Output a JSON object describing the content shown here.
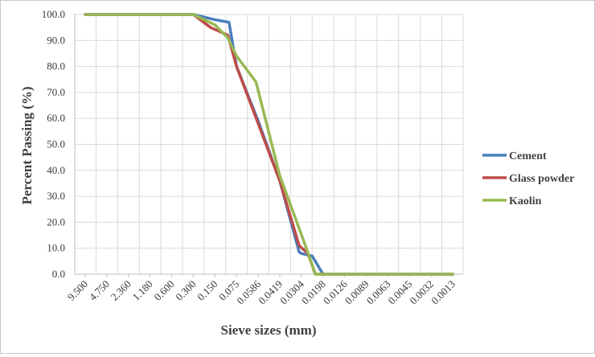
{
  "chart_data": {
    "type": "line",
    "title": "",
    "xlabel": "Sieve sizes (mm)",
    "ylabel": "Percent Passing (%)",
    "ylim": [
      0,
      100
    ],
    "y_ticks": [
      "0.0",
      "10.0",
      "20.0",
      "30.0",
      "40.0",
      "50.0",
      "60.0",
      "70.0",
      "80.0",
      "90.0",
      "100.0"
    ],
    "categories": [
      "9.500",
      "4.750",
      "2.360",
      "1.180",
      "0.600",
      "0.300",
      "0.150",
      "0.075",
      "0.0586",
      "0.0419",
      "0.0304",
      "0.0198",
      "0.0126",
      "0.0089",
      "0.0063",
      "0.0045",
      "0.0032",
      "0.0013"
    ],
    "x": [
      0,
      1,
      2,
      3,
      4,
      5,
      5.8,
      6.6,
      7.2,
      8,
      8.4,
      9,
      9.9,
      10,
      11,
      12,
      13,
      14,
      15,
      16,
      17
    ],
    "grid": true,
    "legend_position": "right",
    "series": [
      {
        "name": "Cement",
        "color": "#4a7ebb",
        "points": [
          [
            0,
            100
          ],
          [
            1,
            100
          ],
          [
            2,
            100
          ],
          [
            3,
            100
          ],
          [
            4,
            100
          ],
          [
            5,
            100
          ],
          [
            6,
            98
          ],
          [
            6.65,
            97
          ],
          [
            7,
            80
          ],
          [
            8,
            59
          ],
          [
            9,
            36
          ],
          [
            9.9,
            8.5
          ],
          [
            10,
            8
          ],
          [
            10.5,
            7
          ],
          [
            11,
            0
          ],
          [
            12,
            0
          ],
          [
            13,
            0
          ],
          [
            14,
            0
          ],
          [
            15,
            0
          ],
          [
            16,
            0
          ],
          [
            17,
            0
          ]
        ]
      },
      {
        "name": "Glass powder",
        "color": "#be4b48",
        "points": [
          [
            0,
            100
          ],
          [
            1,
            100
          ],
          [
            2,
            100
          ],
          [
            3,
            100
          ],
          [
            4,
            100
          ],
          [
            5,
            100
          ],
          [
            5.8,
            95
          ],
          [
            6.6,
            92
          ],
          [
            7,
            80
          ],
          [
            8,
            58
          ],
          [
            9,
            36
          ],
          [
            9.9,
            11
          ],
          [
            10.3,
            8
          ],
          [
            10.65,
            0
          ],
          [
            11,
            0
          ],
          [
            12,
            0
          ],
          [
            13,
            0
          ],
          [
            14,
            0
          ],
          [
            15,
            0
          ],
          [
            16,
            0
          ],
          [
            17,
            0
          ]
        ]
      },
      {
        "name": "Kaolin",
        "color": "#98b954",
        "points": [
          [
            0,
            100
          ],
          [
            1,
            100
          ],
          [
            2,
            100
          ],
          [
            3,
            100
          ],
          [
            4,
            100
          ],
          [
            5,
            100
          ],
          [
            6,
            96
          ],
          [
            6.6,
            91
          ],
          [
            7,
            84
          ],
          [
            7.9,
            74
          ],
          [
            9,
            38
          ],
          [
            10.1,
            13
          ],
          [
            10.65,
            0
          ],
          [
            11,
            0
          ],
          [
            12,
            0
          ],
          [
            13,
            0
          ],
          [
            14,
            0
          ],
          [
            15,
            0
          ],
          [
            16,
            0
          ],
          [
            17,
            0
          ]
        ]
      }
    ]
  }
}
